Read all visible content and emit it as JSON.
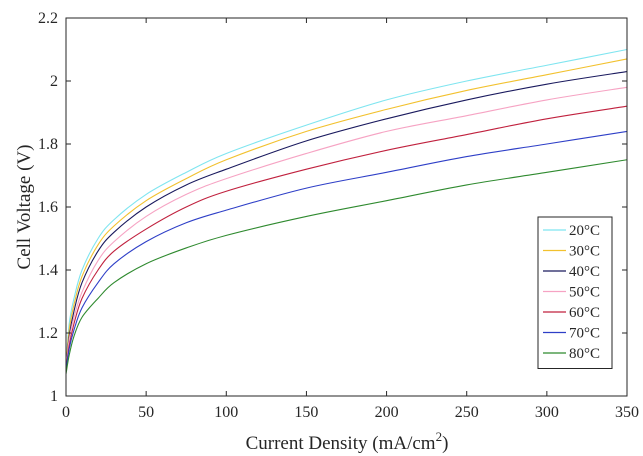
{
  "chart_data": {
    "type": "line",
    "title": "",
    "xlabel": "Current Density (mA/cm",
    "xlabel_superscript": "2",
    "xlabel_suffix": ")",
    "ylabel": "Cell Voltage (V)",
    "xlim": [
      0,
      350
    ],
    "ylim": [
      1,
      2.2
    ],
    "xticks": [
      0,
      50,
      100,
      150,
      200,
      250,
      300,
      350
    ],
    "xtick_labels": [
      "0",
      "50",
      "100",
      "150",
      "200",
      "250",
      "300",
      "350"
    ],
    "yticks": [
      1,
      1.2,
      1.4,
      1.6,
      1.8,
      2,
      2.2
    ],
    "ytick_labels": [
      "1",
      "1.2",
      "1.4",
      "1.6",
      "1.8",
      "2",
      "2.2"
    ],
    "grid": false,
    "legend_position": "lower-right",
    "x": [
      0,
      2,
      5,
      10,
      20,
      30,
      50,
      75,
      100,
      150,
      200,
      250,
      300,
      350
    ],
    "series": [
      {
        "name": "20°C",
        "color": "#7fe5f0",
        "values": [
          1.1,
          1.23,
          1.31,
          1.4,
          1.5,
          1.56,
          1.64,
          1.71,
          1.77,
          1.86,
          1.94,
          2.0,
          2.05,
          2.1
        ]
      },
      {
        "name": "30°C",
        "color": "#f2c12e",
        "values": [
          1.1,
          1.21,
          1.29,
          1.38,
          1.48,
          1.54,
          1.62,
          1.69,
          1.75,
          1.84,
          1.91,
          1.97,
          2.02,
          2.07
        ]
      },
      {
        "name": "40°C",
        "color": "#1a1a5e",
        "values": [
          1.09,
          1.19,
          1.27,
          1.36,
          1.46,
          1.52,
          1.6,
          1.67,
          1.72,
          1.81,
          1.88,
          1.94,
          1.99,
          2.03
        ]
      },
      {
        "name": "50°C",
        "color": "#f6a3c3",
        "values": [
          1.09,
          1.18,
          1.25,
          1.33,
          1.43,
          1.49,
          1.57,
          1.64,
          1.69,
          1.77,
          1.84,
          1.89,
          1.94,
          1.98
        ]
      },
      {
        "name": "60°C",
        "color": "#c0213e",
        "values": [
          1.08,
          1.16,
          1.23,
          1.31,
          1.4,
          1.46,
          1.53,
          1.6,
          1.65,
          1.72,
          1.78,
          1.83,
          1.88,
          1.92
        ]
      },
      {
        "name": "70°C",
        "color": "#2e3fc7",
        "values": [
          1.08,
          1.15,
          1.21,
          1.28,
          1.36,
          1.42,
          1.49,
          1.55,
          1.59,
          1.66,
          1.71,
          1.76,
          1.8,
          1.84
        ]
      },
      {
        "name": "80°C",
        "color": "#2f8a2f",
        "values": [
          1.07,
          1.13,
          1.19,
          1.25,
          1.31,
          1.36,
          1.42,
          1.47,
          1.51,
          1.57,
          1.62,
          1.67,
          1.71,
          1.75
        ]
      }
    ]
  }
}
